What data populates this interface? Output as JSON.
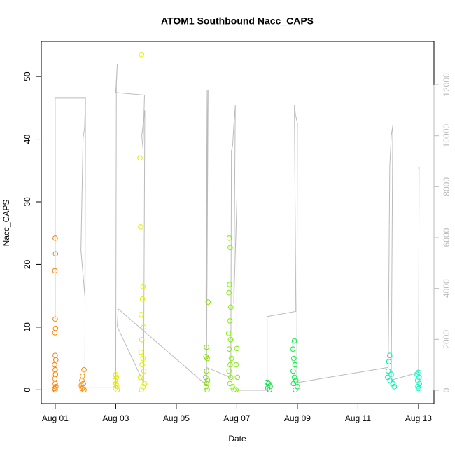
{
  "chart_data": {
    "type": "scatter",
    "title": "ATOM1 Southbound Nacc_CAPS",
    "x_label": "Date",
    "y_label": "Nacc_CAPS",
    "xlim": [
      0.54,
      13.51
    ],
    "xticks": [
      {
        "value": 1,
        "label": "Aug 01"
      },
      {
        "value": 3,
        "label": "Aug 03"
      },
      {
        "value": 5,
        "label": "Aug 05"
      },
      {
        "value": 7,
        "label": "Aug 07"
      },
      {
        "value": 9,
        "label": "Aug 09"
      },
      {
        "value": 11,
        "label": "Aug 11"
      },
      {
        "value": 13,
        "label": "Aug 13"
      }
    ],
    "ylim": [
      -2.2,
      55.6
    ],
    "yticks": [
      0,
      10,
      20,
      30,
      40,
      50
    ],
    "y2lim": [
      -523,
      13707
    ],
    "y2ticks": [
      0,
      2000,
      4000,
      6000,
      8000,
      10000,
      12000
    ],
    "y2_color": "#bbbbbb",
    "series": [
      {
        "color": "#ff8000",
        "x": [
          1.0,
          1.01,
          0.99,
          1.0,
          1.01,
          0.99,
          1.0,
          1.02,
          0.98,
          1.0,
          1.01,
          0.99,
          1.0,
          1.02,
          0.98,
          1.0
        ],
        "values": [
          24.2,
          21.7,
          19,
          11.3,
          9.8,
          9.1,
          5.5,
          4.8,
          4,
          3.2,
          2.5,
          1.8,
          1,
          0.5,
          0.2,
          0
        ]
      },
      {
        "color": "#ff8c00",
        "x": [
          1.95,
          1.9,
          1.88,
          1.93,
          1.86,
          1.92,
          1.89,
          1.95
        ],
        "values": [
          3.2,
          2.2,
          1.5,
          1,
          0.7,
          0.4,
          0.2,
          0
        ]
      },
      {
        "color": "#e6e600",
        "x": [
          3.0,
          3.02,
          2.98,
          3.01,
          3.03,
          2.99,
          3.05
        ],
        "values": [
          2.4,
          2,
          1.5,
          1,
          0.6,
          0.3,
          0
        ]
      },
      {
        "color": "#e0f000",
        "x": [
          3.85,
          3.8,
          3.82,
          3.9,
          3.88,
          3.84,
          3.92,
          3.86,
          3.83,
          3.9,
          3.87,
          3.93,
          3.81,
          3.95,
          3.9,
          3.85
        ],
        "values": [
          53.5,
          37,
          26,
          16.5,
          14.5,
          12,
          10,
          8,
          6,
          5,
          4,
          3,
          2,
          1,
          0.5,
          0
        ]
      },
      {
        "color": "#80e000",
        "x": [
          6.05,
          6.0,
          5.98,
          6.02,
          6.0,
          5.97,
          6.03,
          6.0,
          5.99,
          6.02
        ],
        "values": [
          14,
          6.8,
          5.3,
          5,
          3,
          2,
          1.5,
          1,
          0.5,
          0
        ]
      },
      {
        "color": "#80f000",
        "x": [
          6.75,
          6.78,
          6.76,
          6.74,
          6.8,
          6.77,
          6.73,
          6.79,
          6.75,
          6.82,
          6.78,
          6.74,
          6.8,
          6.77,
          6.85,
          6.9,
          7.0,
          6.98,
          7.02,
          6.97
        ],
        "values": [
          24.2,
          22.7,
          16.8,
          15.5,
          13.2,
          11,
          9,
          8,
          6.5,
          5,
          4,
          3,
          2,
          1,
          0.5,
          0,
          6.6,
          4,
          2,
          0
        ]
      },
      {
        "color": "#00e840",
        "x": [
          8.0,
          8.05,
          8.1,
          8.02,
          8.08
        ],
        "values": [
          1.2,
          1,
          0.6,
          0.3,
          0
        ]
      },
      {
        "color": "#00f040",
        "x": [
          8.9,
          8.85,
          8.88,
          8.92,
          8.86,
          8.9,
          8.95,
          8.87,
          9.0,
          8.93
        ],
        "values": [
          7.8,
          6.5,
          5,
          4,
          3,
          2,
          1.5,
          1,
          0.5,
          0
        ]
      },
      {
        "color": "#00f0b0",
        "x": [
          12.05,
          12.02,
          12.0,
          12.1,
          11.98,
          12.06,
          12.15,
          12.2
        ],
        "values": [
          5.5,
          4.5,
          3,
          2.5,
          2,
          1.5,
          1,
          0.5
        ]
      },
      {
        "color": "#00ffc0",
        "x": [
          13.0,
          12.95,
          13.02,
          12.97,
          13.03,
          12.98,
          13.0
        ],
        "values": [
          2.8,
          2.5,
          2,
          1.5,
          1,
          0.5,
          0.2
        ]
      },
      {
        "color": "#bbbbbb",
        "axis": "y2",
        "line": true,
        "x": [
          1.0,
          1.0,
          2.0,
          1.98,
          1.85,
          1.92,
          1.97,
          2.0,
          1.98,
          3.0,
          3.02,
          3.05,
          3.0,
          3.95,
          3.9,
          3.86,
          3.96,
          3.92,
          3.05,
          3.08,
          6.0,
          6.02,
          5.98,
          6.05,
          6.0,
          6.8,
          6.82,
          6.86,
          6.9,
          6.95,
          6.9,
          7.0,
          7.0,
          8.0,
          8.0,
          8.02,
          8.95,
          8.9,
          8.94,
          9.0,
          8.98,
          12.0,
          12.05,
          12.1,
          12.15,
          12.1,
          13.0,
          13.02,
          13.0
        ],
        "values": [
          2800,
          11480,
          11480,
          3700,
          5500,
          9900,
          10300,
          11500,
          100,
          100,
          12000,
          12800,
          11700,
          11600,
          9500,
          10000,
          11000,
          300,
          2500,
          3200,
          200,
          11800,
          3600,
          11800,
          900,
          500,
          9400,
          9600,
          10400,
          11200,
          3400,
          7500,
          0,
          0,
          2900,
          2900,
          3100,
          11200,
          10800,
          10500,
          300,
          900,
          8800,
          10000,
          10400,
          400,
          700,
          8800,
          8700
        ]
      }
    ]
  }
}
